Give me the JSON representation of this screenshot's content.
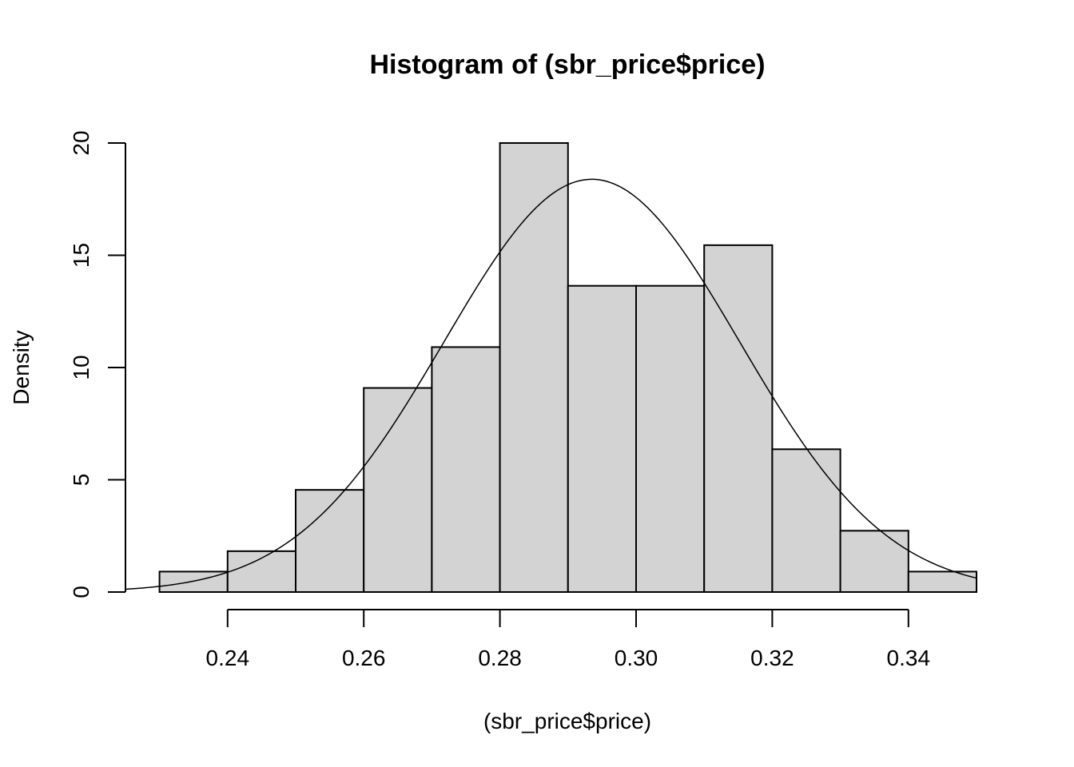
{
  "chart_data": {
    "type": "bar",
    "title": "Histogram of (sbr_price$price)",
    "xlabel": "(sbr_price$price)",
    "ylabel": "Density",
    "bin_edges": [
      0.23,
      0.24,
      0.25,
      0.26,
      0.27,
      0.28,
      0.29,
      0.3,
      0.31,
      0.32,
      0.33,
      0.34,
      0.35
    ],
    "values": [
      0.91,
      1.82,
      4.55,
      9.09,
      10.91,
      20.0,
      13.64,
      13.64,
      15.45,
      6.36,
      2.73,
      0.91
    ],
    "xlim": [
      0.225,
      0.35
    ],
    "ylim": [
      0,
      20
    ],
    "x_ticks": [
      "0.24",
      "0.26",
      "0.28",
      "0.30",
      "0.32",
      "0.34"
    ],
    "x_tick_values": [
      0.24,
      0.26,
      0.28,
      0.3,
      0.32,
      0.34
    ],
    "y_ticks": [
      "0",
      "5",
      "10",
      "15",
      "20"
    ],
    "y_tick_values": [
      0,
      5,
      10,
      15,
      20
    ],
    "overlay": {
      "type": "normal-density-line",
      "mean": 0.2935,
      "sd": 0.0217
    },
    "grid": false,
    "colors": {
      "bar_fill": "#d3d3d3",
      "bar_stroke": "#000000",
      "curve": "#000000"
    }
  }
}
